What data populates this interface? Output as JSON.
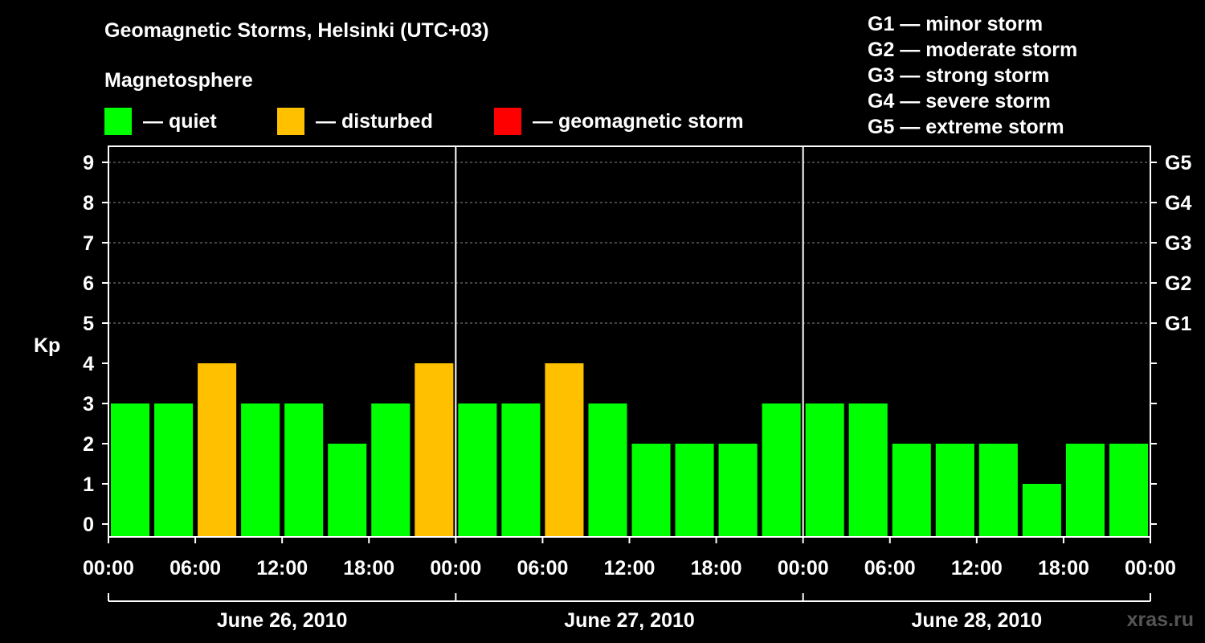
{
  "chart_data": {
    "type": "bar",
    "title": "Geomagnetic Storms, Helsinki (UTC+03)",
    "ylabel": "Kp",
    "ylim": [
      0,
      9
    ],
    "yticks": [
      "0",
      "1",
      "2",
      "3",
      "4",
      "5",
      "6",
      "7",
      "8",
      "9"
    ],
    "g_ticks": [
      {
        "label": "G1",
        "kp": 5
      },
      {
        "label": "G2",
        "kp": 6
      },
      {
        "label": "G3",
        "kp": 7
      },
      {
        "label": "G4",
        "kp": 8
      },
      {
        "label": "G5",
        "kp": 9
      }
    ],
    "x_tick_labels": [
      "00:00",
      "06:00",
      "12:00",
      "18:00",
      "00:00",
      "06:00",
      "12:00",
      "18:00",
      "00:00",
      "06:00",
      "12:00",
      "18:00",
      "00:00"
    ],
    "days": [
      "June 26, 2010",
      "June 27, 2010",
      "June 28, 2010"
    ],
    "interval_hours": 3,
    "values": [
      3,
      3,
      4,
      3,
      3,
      2,
      3,
      4,
      3,
      3,
      4,
      3,
      2,
      2,
      2,
      3,
      3,
      3,
      2,
      2,
      2,
      1,
      2,
      2
    ],
    "colors": {
      "quiet": "#00ff00",
      "disturbed": "#ffc000",
      "storm": "#ff0000"
    }
  },
  "legend": {
    "title": "Magnetosphere",
    "items": [
      {
        "label": "— quiet",
        "color": "#00ff00"
      },
      {
        "label": "— disturbed",
        "color": "#ffc000"
      },
      {
        "label": "— geomagnetic storm",
        "color": "#ff0000"
      }
    ]
  },
  "storm_scale": [
    "G1 — minor storm",
    "G2 — moderate storm",
    "G3 — strong storm",
    "G4 — severe storm",
    "G5 — extreme storm"
  ],
  "watermark": "xras.ru"
}
